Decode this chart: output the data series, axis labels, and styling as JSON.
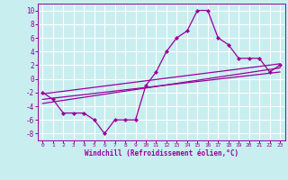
{
  "bg_color": "#c8eef0",
  "grid_color": "#ffffff",
  "line_color": "#990099",
  "xlabel": "Windchill (Refroidissement éolien,°C)",
  "xlabel_color": "#990099",
  "tick_color": "#990099",
  "xlim": [
    -0.5,
    23.5
  ],
  "ylim": [
    -9,
    11
  ],
  "xticks": [
    0,
    1,
    2,
    3,
    4,
    5,
    6,
    7,
    8,
    9,
    10,
    11,
    12,
    13,
    14,
    15,
    16,
    17,
    18,
    19,
    20,
    21,
    22,
    23
  ],
  "yticks": [
    -8,
    -6,
    -4,
    -2,
    0,
    2,
    4,
    6,
    8,
    10
  ],
  "main_line_x": [
    0,
    1,
    2,
    3,
    4,
    5,
    6,
    7,
    8,
    9,
    10,
    11,
    12,
    13,
    14,
    15,
    16,
    17,
    18,
    19,
    20,
    21,
    22,
    23
  ],
  "main_line_y": [
    -2,
    -3,
    -5,
    -5,
    -5,
    -6,
    -8,
    -6,
    -6,
    -6,
    -1,
    1,
    4,
    6,
    7,
    10,
    10,
    6,
    5,
    3,
    3,
    3,
    1,
    2
  ],
  "trend_lines": [
    {
      "x": [
        0,
        23
      ],
      "y": [
        -2.2,
        2.2
      ]
    },
    {
      "x": [
        0,
        23
      ],
      "y": [
        -3.0,
        1.0
      ]
    },
    {
      "x": [
        0,
        23
      ],
      "y": [
        -3.6,
        1.6
      ]
    }
  ]
}
